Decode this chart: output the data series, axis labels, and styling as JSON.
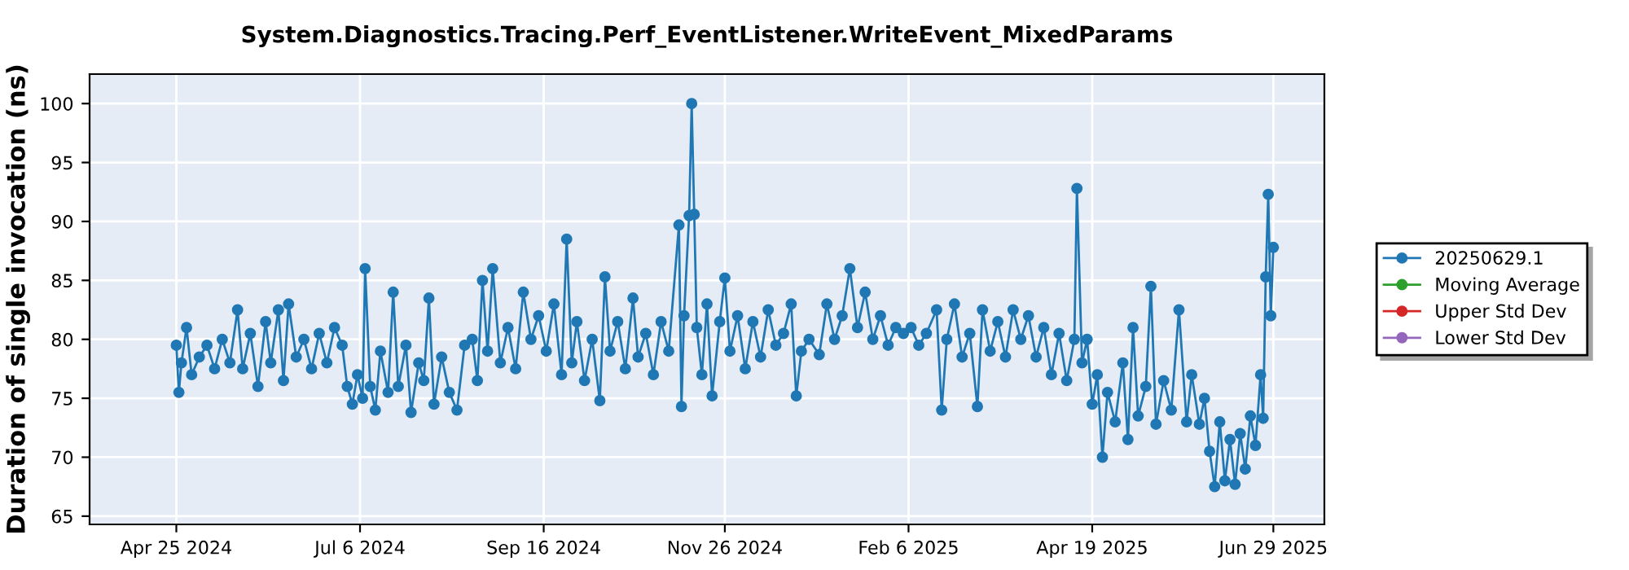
{
  "chart_data": {
    "type": "line",
    "title": "System.Diagnostics.Tracing.Perf_EventListener.WriteEvent_MixedParams",
    "ylabel": "Duration of single invocation (ns)",
    "xlim": [
      "2024-03-22",
      "2025-07-19"
    ],
    "ylim": [
      64.3,
      102.5
    ],
    "xticks": [
      {
        "value": "2024-04-25",
        "label": "Apr 25 2024"
      },
      {
        "value": "2024-07-06",
        "label": "Jul 6 2024"
      },
      {
        "value": "2024-09-16",
        "label": "Sep 16 2024"
      },
      {
        "value": "2024-11-26",
        "label": "Nov 26 2024"
      },
      {
        "value": "2025-02-06",
        "label": "Feb 6 2025"
      },
      {
        "value": "2025-04-19",
        "label": "Apr 19 2025"
      },
      {
        "value": "2025-06-29",
        "label": "Jun 29 2025"
      }
    ],
    "yticks": [
      65,
      70,
      75,
      80,
      85,
      90,
      95,
      100
    ],
    "grid": true,
    "legend": "right",
    "marker": "circle",
    "line_style": "solid",
    "series": [
      {
        "name": "20250629.1",
        "color": "#1f77b4",
        "x": [
          "2024-04-25",
          "2024-04-26",
          "2024-04-27",
          "2024-04-29",
          "2024-05-01",
          "2024-05-04",
          "2024-05-07",
          "2024-05-10",
          "2024-05-13",
          "2024-05-16",
          "2024-05-19",
          "2024-05-21",
          "2024-05-24",
          "2024-05-27",
          "2024-05-30",
          "2024-06-01",
          "2024-06-04",
          "2024-06-06",
          "2024-06-08",
          "2024-06-11",
          "2024-06-14",
          "2024-06-17",
          "2024-06-20",
          "2024-06-23",
          "2024-06-26",
          "2024-06-29",
          "2024-07-01",
          "2024-07-03",
          "2024-07-05",
          "2024-07-07",
          "2024-07-08",
          "2024-07-10",
          "2024-07-12",
          "2024-07-14",
          "2024-07-17",
          "2024-07-19",
          "2024-07-21",
          "2024-07-24",
          "2024-07-26",
          "2024-07-29",
          "2024-07-31",
          "2024-08-02",
          "2024-08-04",
          "2024-08-07",
          "2024-08-10",
          "2024-08-13",
          "2024-08-16",
          "2024-08-19",
          "2024-08-21",
          "2024-08-23",
          "2024-08-25",
          "2024-08-27",
          "2024-08-30",
          "2024-09-02",
          "2024-09-05",
          "2024-09-08",
          "2024-09-11",
          "2024-09-14",
          "2024-09-17",
          "2024-09-20",
          "2024-09-23",
          "2024-09-25",
          "2024-09-27",
          "2024-09-29",
          "2024-10-02",
          "2024-10-05",
          "2024-10-08",
          "2024-10-10",
          "2024-10-12",
          "2024-10-15",
          "2024-10-18",
          "2024-10-21",
          "2024-10-23",
          "2024-10-26",
          "2024-10-29",
          "2024-11-01",
          "2024-11-04",
          "2024-11-08",
          "2024-11-09",
          "2024-11-10",
          "2024-11-12",
          "2024-11-13",
          "2024-11-14",
          "2024-11-15",
          "2024-11-17",
          "2024-11-19",
          "2024-11-21",
          "2024-11-24",
          "2024-11-26",
          "2024-11-28",
          "2024-12-01",
          "2024-12-04",
          "2024-12-07",
          "2024-12-10",
          "2024-12-13",
          "2024-12-16",
          "2024-12-19",
          "2024-12-22",
          "2024-12-24",
          "2024-12-26",
          "2024-12-29",
          "2025-01-02",
          "2025-01-05",
          "2025-01-08",
          "2025-01-11",
          "2025-01-14",
          "2025-01-17",
          "2025-01-20",
          "2025-01-23",
          "2025-01-26",
          "2025-01-29",
          "2025-02-01",
          "2025-02-04",
          "2025-02-07",
          "2025-02-10",
          "2025-02-13",
          "2025-02-17",
          "2025-02-19",
          "2025-02-21",
          "2025-02-24",
          "2025-02-27",
          "2025-03-02",
          "2025-03-05",
          "2025-03-07",
          "2025-03-10",
          "2025-03-13",
          "2025-03-16",
          "2025-03-19",
          "2025-03-22",
          "2025-03-25",
          "2025-03-28",
          "2025-03-31",
          "2025-04-03",
          "2025-04-06",
          "2025-04-09",
          "2025-04-12",
          "2025-04-13",
          "2025-04-15",
          "2025-04-17",
          "2025-04-19",
          "2025-04-21",
          "2025-04-23",
          "2025-04-25",
          "2025-04-28",
          "2025-05-01",
          "2025-05-03",
          "2025-05-05",
          "2025-05-07",
          "2025-05-10",
          "2025-05-12",
          "2025-05-14",
          "2025-05-17",
          "2025-05-20",
          "2025-05-23",
          "2025-05-26",
          "2025-05-28",
          "2025-05-31",
          "2025-06-02",
          "2025-06-04",
          "2025-06-06",
          "2025-06-08",
          "2025-06-10",
          "2025-06-12",
          "2025-06-14",
          "2025-06-16",
          "2025-06-18",
          "2025-06-20",
          "2025-06-22",
          "2025-06-24",
          "2025-06-25",
          "2025-06-26",
          "2025-06-27",
          "2025-06-28",
          "2025-06-29"
        ],
        "values": [
          79.5,
          75.5,
          78,
          81,
          77,
          78.5,
          79.5,
          77.5,
          80,
          78,
          82.5,
          77.5,
          80.5,
          76,
          81.5,
          78,
          82.5,
          76.5,
          83,
          78.5,
          80,
          77.5,
          80.5,
          78,
          81,
          79.5,
          76,
          74.5,
          77,
          75,
          86,
          76,
          74,
          79,
          75.5,
          84,
          76,
          79.5,
          73.8,
          78,
          76.5,
          83.5,
          74.5,
          78.5,
          75.5,
          74,
          79.5,
          80,
          76.5,
          85,
          79,
          86,
          78,
          81,
          77.5,
          84,
          80,
          82,
          79,
          83,
          77,
          88.5,
          78,
          81.5,
          76.5,
          80,
          74.8,
          85.3,
          79,
          81.5,
          77.5,
          83.5,
          78.5,
          80.5,
          77,
          81.5,
          79,
          89.7,
          74.3,
          82,
          90.5,
          100,
          90.6,
          81,
          77,
          83,
          75.2,
          81.5,
          85.2,
          79,
          82,
          77.5,
          81.5,
          78.5,
          82.5,
          79.5,
          80.5,
          83,
          75.2,
          79,
          80,
          78.7,
          83,
          80,
          82,
          86,
          81,
          84,
          80,
          82,
          79.5,
          81,
          80.5,
          81,
          79.5,
          80.5,
          82.5,
          74,
          80,
          83,
          78.5,
          80.5,
          74.3,
          82.5,
          79,
          81.5,
          78.5,
          82.5,
          80,
          82,
          78.5,
          81,
          77,
          80.5,
          76.5,
          80,
          92.8,
          78,
          80,
          74.5,
          77,
          70,
          75.5,
          73,
          78,
          71.5,
          81,
          73.5,
          76,
          84.5,
          72.8,
          76.5,
          74,
          82.5,
          73,
          77,
          72.8,
          75,
          70.5,
          67.5,
          73,
          68,
          71.5,
          67.7,
          72,
          69,
          73.5,
          71,
          77,
          73.3,
          85.3,
          92.3,
          82,
          87.8
        ]
      },
      {
        "name": "Moving Average",
        "color": "#2ca02c"
      },
      {
        "name": "Upper Std Dev",
        "color": "#d62728"
      },
      {
        "name": "Lower Std Dev",
        "color": "#9467bd"
      }
    ]
  }
}
